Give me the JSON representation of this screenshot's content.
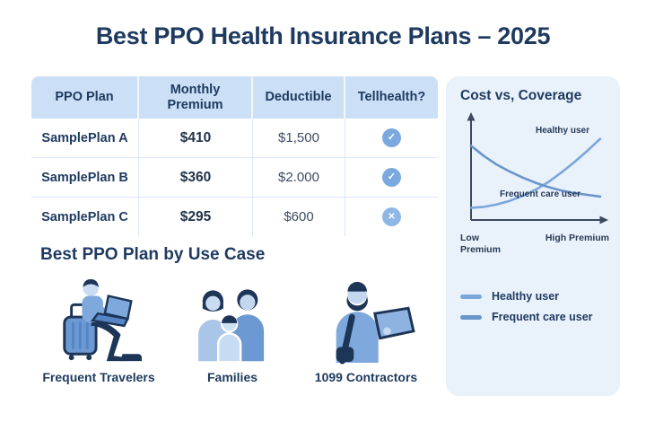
{
  "title": "Best PPO Health Insurance Plans – 2025",
  "table": {
    "headers": [
      "PPO Plan",
      "Monthly Premium",
      "Deductible",
      "Tellhealth?"
    ],
    "rows": [
      {
        "plan": "SamplePlan A",
        "premium": "$410",
        "deductible": "$1,500",
        "telehealth": "yes"
      },
      {
        "plan": "SamplePlan B",
        "premium": "$360",
        "deductible": "$2.000",
        "telehealth": "yes"
      },
      {
        "plan": "SamplePlan C",
        "premium": "$295",
        "deductible": "$600",
        "telehealth": "no"
      }
    ]
  },
  "icons": {
    "check": "✓",
    "cross": "✕"
  },
  "chart_data": {
    "type": "line",
    "title": "Cost vs, Coverage",
    "x": [
      0,
      0.1,
      0.2,
      0.3,
      0.4,
      0.5,
      0.6,
      0.7,
      0.8,
      0.9,
      1.0
    ],
    "series": [
      {
        "name": "Healthy user",
        "color": "#7ba6d9",
        "values": [
          0.1,
          0.11,
          0.14,
          0.18,
          0.24,
          0.31,
          0.4,
          0.51,
          0.63,
          0.76,
          0.9
        ]
      },
      {
        "name": "Frequent care user",
        "color": "#6a95cb",
        "values": [
          0.82,
          0.7,
          0.6,
          0.52,
          0.45,
          0.39,
          0.34,
          0.3,
          0.27,
          0.25,
          0.23
        ]
      }
    ],
    "x_tick_labels": [
      "Low Premium",
      "High Premium"
    ],
    "ylim": [
      0,
      1
    ],
    "grid": false,
    "legend_position": "bottom-of-panel"
  },
  "use_case": {
    "heading": "Best PPO Plan by Use Case",
    "items": [
      {
        "label": "Frequent Travelers",
        "icon": "traveler-suitcase-laptop-illustration"
      },
      {
        "label": "Families",
        "icon": "family-illustration"
      },
      {
        "label": "1099 Contractors",
        "icon": "contractor-tablet-illustration"
      }
    ]
  },
  "colors": {
    "navy": "#1e3a5f",
    "table_header_bg": "#cbdff6",
    "panel_bg": "#e9f1fb",
    "check_circle": "#79a9de",
    "cross_circle": "#8fb7e6",
    "axis": "#3d4a5c"
  }
}
